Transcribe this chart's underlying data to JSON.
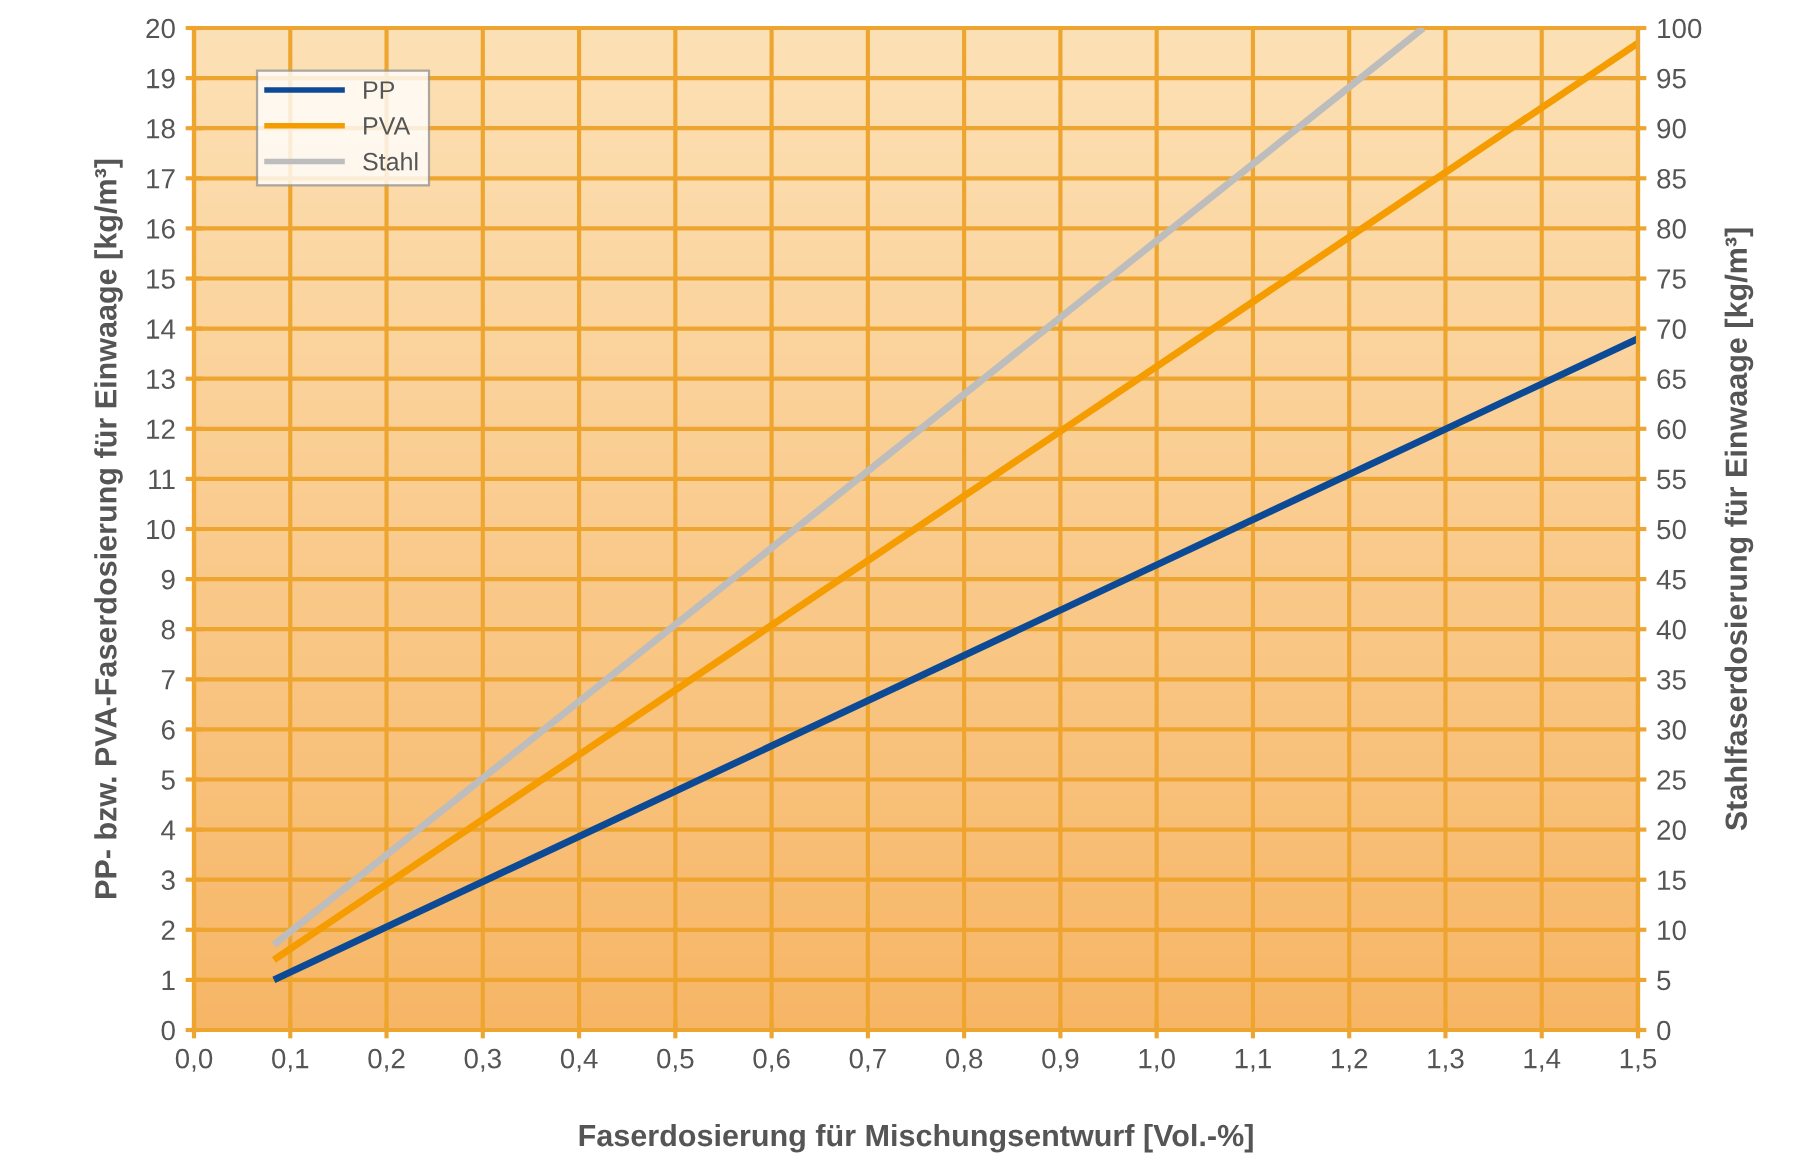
{
  "chart_data": {
    "type": "line",
    "xlabel": "Faserdosierung für Mischungsentwurf [Vol.-%]",
    "ylabel": "PP- bzw. PVA-Faserdosierung für Einwaage [kg/m³]",
    "y2label": "Stahlfaserdosierung für Einwaage [kg/m³]",
    "series": [
      {
        "name": "PP",
        "color": "#0d4a96",
        "x": [
          0.083,
          1.5
        ],
        "values": [
          1.0,
          13.8
        ]
      },
      {
        "name": "PVA",
        "color": "#f59c00",
        "x": [
          0.083,
          1.5
        ],
        "values": [
          1.4,
          19.7
        ]
      },
      {
        "name": "Stahl",
        "color": "#bdbdbd",
        "x": [
          0.083,
          1.277
        ],
        "values": [
          8.5,
          100
        ],
        "axis": "y2"
      }
    ],
    "xlim": [
      0,
      1.5
    ],
    "xticks": [
      {
        "value": 0,
        "label": "0,0"
      },
      {
        "value": 0.1,
        "label": "0,1"
      },
      {
        "value": 0.2,
        "label": "0,2"
      },
      {
        "value": 0.3,
        "label": "0,3"
      },
      {
        "value": 0.4,
        "label": "0,4"
      },
      {
        "value": 0.5,
        "label": "0,5"
      },
      {
        "value": 0.6,
        "label": "0,6"
      },
      {
        "value": 0.7,
        "label": "0,7"
      },
      {
        "value": 0.8,
        "label": "0,8"
      },
      {
        "value": 0.9,
        "label": "0,9"
      },
      {
        "value": 1.0,
        "label": "1,0"
      },
      {
        "value": 1.1,
        "label": "1,1"
      },
      {
        "value": 1.2,
        "label": "1,2"
      },
      {
        "value": 1.3,
        "label": "1,3"
      },
      {
        "value": 1.4,
        "label": "1,4"
      },
      {
        "value": 1.5,
        "label": "1,5"
      }
    ],
    "ylim": [
      0,
      20
    ],
    "yticks": [
      0,
      1,
      2,
      3,
      4,
      5,
      6,
      7,
      8,
      9,
      10,
      11,
      12,
      13,
      14,
      15,
      16,
      17,
      18,
      19,
      20
    ],
    "y2lim": [
      0,
      100
    ],
    "y2ticks": [
      0,
      5,
      10,
      15,
      20,
      25,
      30,
      35,
      40,
      45,
      50,
      55,
      60,
      65,
      70,
      75,
      80,
      85,
      90,
      95,
      100
    ],
    "grid": true,
    "legend": "top left",
    "marker": "none",
    "line_style": "solid"
  }
}
